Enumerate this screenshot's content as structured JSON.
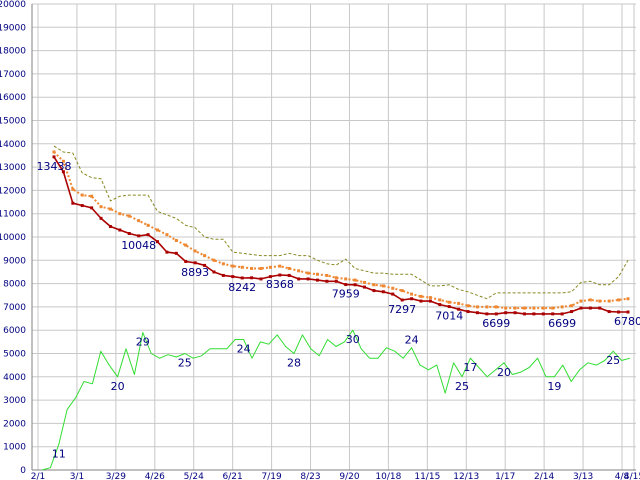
{
  "chart_data": {
    "type": "line",
    "title": "",
    "xlabel": "",
    "ylabel": "",
    "ylim": [
      0,
      20000
    ],
    "y_ticks": [
      0,
      1000,
      2000,
      3000,
      4000,
      5000,
      6000,
      7000,
      8000,
      9000,
      10000,
      11000,
      12000,
      13000,
      14000,
      15000,
      16000,
      17000,
      18000,
      19000,
      20000
    ],
    "x_tick_labels": [
      "2/1",
      "3/1",
      "3/29",
      "4/26",
      "5/24",
      "6/21",
      "7/19",
      "8/23",
      "9/20",
      "10/18",
      "11/15",
      "12/13",
      "1/17",
      "2/14",
      "3/13",
      "4/8",
      "4/15"
    ],
    "grid": true,
    "colors": {
      "price_line": "#aa0000",
      "average_line": "#ee8833",
      "upper_band": "#888822",
      "count_line": "#33dd33",
      "labels": "#000080",
      "grid": "#c8c8c8"
    },
    "series": [
      {
        "key": "price",
        "values": [
          13438,
          12800,
          11450,
          11350,
          11250,
          10800,
          10450,
          10300,
          10150,
          10048,
          10100,
          9800,
          9350,
          9300,
          8950,
          8893,
          8780,
          8500,
          8350,
          8300,
          8242,
          8250,
          8200,
          8300,
          8368,
          8350,
          8200,
          8200,
          8150,
          8100,
          8100,
          7959,
          7950,
          7850,
          7700,
          7650,
          7550,
          7297,
          7350,
          7250,
          7250,
          7100,
          7014,
          6900,
          6800,
          6750,
          6700,
          6699,
          6750,
          6750,
          6700,
          6700,
          6699,
          6700,
          6699,
          6800,
          6950,
          6950,
          6950,
          6800,
          6780,
          6780
        ]
      },
      {
        "key": "average",
        "values": [
          13650,
          13250,
          12050,
          11800,
          11750,
          11300,
          11200,
          11000,
          10900,
          10700,
          10500,
          10300,
          10100,
          9850,
          9650,
          9400,
          9200,
          9000,
          8850,
          8750,
          8700,
          8650,
          8650,
          8700,
          8750,
          8650,
          8550,
          8450,
          8400,
          8350,
          8250,
          8200,
          8150,
          8050,
          7950,
          7900,
          7800,
          7700,
          7550,
          7450,
          7400,
          7300,
          7200,
          7150,
          7050,
          7000,
          7000,
          7000,
          6950,
          6950,
          6950,
          6950,
          6950,
          6950,
          7000,
          7050,
          7250,
          7300,
          7250,
          7250,
          7300,
          7350
        ]
      },
      {
        "key": "upper",
        "values": [
          13900,
          13650,
          13600,
          12750,
          12550,
          12500,
          11550,
          11750,
          11800,
          11800,
          11800,
          11100,
          10950,
          10800,
          10500,
          10400,
          10000,
          9900,
          9900,
          9350,
          9300,
          9250,
          9200,
          9200,
          9200,
          9300,
          9200,
          9200,
          9000,
          8850,
          8800,
          9050,
          8650,
          8550,
          8450,
          8450,
          8400,
          8400,
          8400,
          8150,
          7900,
          7900,
          7950,
          7750,
          7650,
          7500,
          7350,
          7600,
          7600,
          7600,
          7600,
          7600,
          7600,
          7600,
          7600,
          7650,
          8050,
          8100,
          7950,
          7950,
          8300,
          9000
        ]
      },
      {
        "key": "count",
        "values": [
          0,
          100,
          1100,
          2600,
          3100,
          3800,
          3700,
          5100,
          4500,
          4000,
          5200,
          4100,
          5900,
          5000,
          4800,
          4950,
          4850,
          5000,
          4800,
          4900,
          5200,
          5200,
          5200,
          5600,
          5600,
          4800,
          5500,
          5400,
          5800,
          5300,
          5000,
          5800,
          5200,
          4900,
          5600,
          5300,
          5500,
          6000,
          5200,
          4800,
          4800,
          5250,
          5100,
          4800,
          5250,
          4500,
          4300,
          4500,
          3300,
          4600,
          4000,
          4800,
          4400,
          4000,
          4300,
          4600,
          4100,
          4200,
          4400,
          4800,
          4000,
          4000,
          4500,
          3800,
          4300,
          4600,
          4500,
          4700,
          5100,
          4700,
          4800
        ]
      }
    ],
    "data_labels": [
      {
        "series": "price",
        "index": 0,
        "text": "13438"
      },
      {
        "series": "price",
        "index": 9,
        "text": "10048"
      },
      {
        "series": "price",
        "index": 15,
        "text": "8893"
      },
      {
        "series": "price",
        "index": 20,
        "text": "8242"
      },
      {
        "series": "price",
        "index": 24,
        "text": "8368"
      },
      {
        "series": "price",
        "index": 31,
        "text": "7959"
      },
      {
        "series": "price",
        "index": 37,
        "text": "7297"
      },
      {
        "series": "price",
        "index": 42,
        "text": "7014"
      },
      {
        "series": "price",
        "index": 47,
        "text": "6699"
      },
      {
        "series": "price",
        "index": 54,
        "text": "6699"
      },
      {
        "series": "price",
        "index": 61,
        "text": "6780"
      },
      {
        "series": "count",
        "index": 2,
        "text": "11"
      },
      {
        "series": "count",
        "index": 9,
        "text": "20"
      },
      {
        "series": "count",
        "index": 12,
        "text": "29"
      },
      {
        "series": "count",
        "index": 17,
        "text": "25"
      },
      {
        "series": "count",
        "index": 24,
        "text": "24"
      },
      {
        "series": "count",
        "index": 30,
        "text": "28"
      },
      {
        "series": "count",
        "index": 37,
        "text": "30"
      },
      {
        "series": "count",
        "index": 44,
        "text": "24"
      },
      {
        "series": "count",
        "index": 50,
        "text": "25"
      },
      {
        "series": "count",
        "index": 51,
        "text": "17"
      },
      {
        "series": "count",
        "index": 55,
        "text": "20"
      },
      {
        "series": "count",
        "index": 61,
        "text": "19"
      },
      {
        "series": "count",
        "index": 68,
        "text": "25"
      }
    ]
  }
}
